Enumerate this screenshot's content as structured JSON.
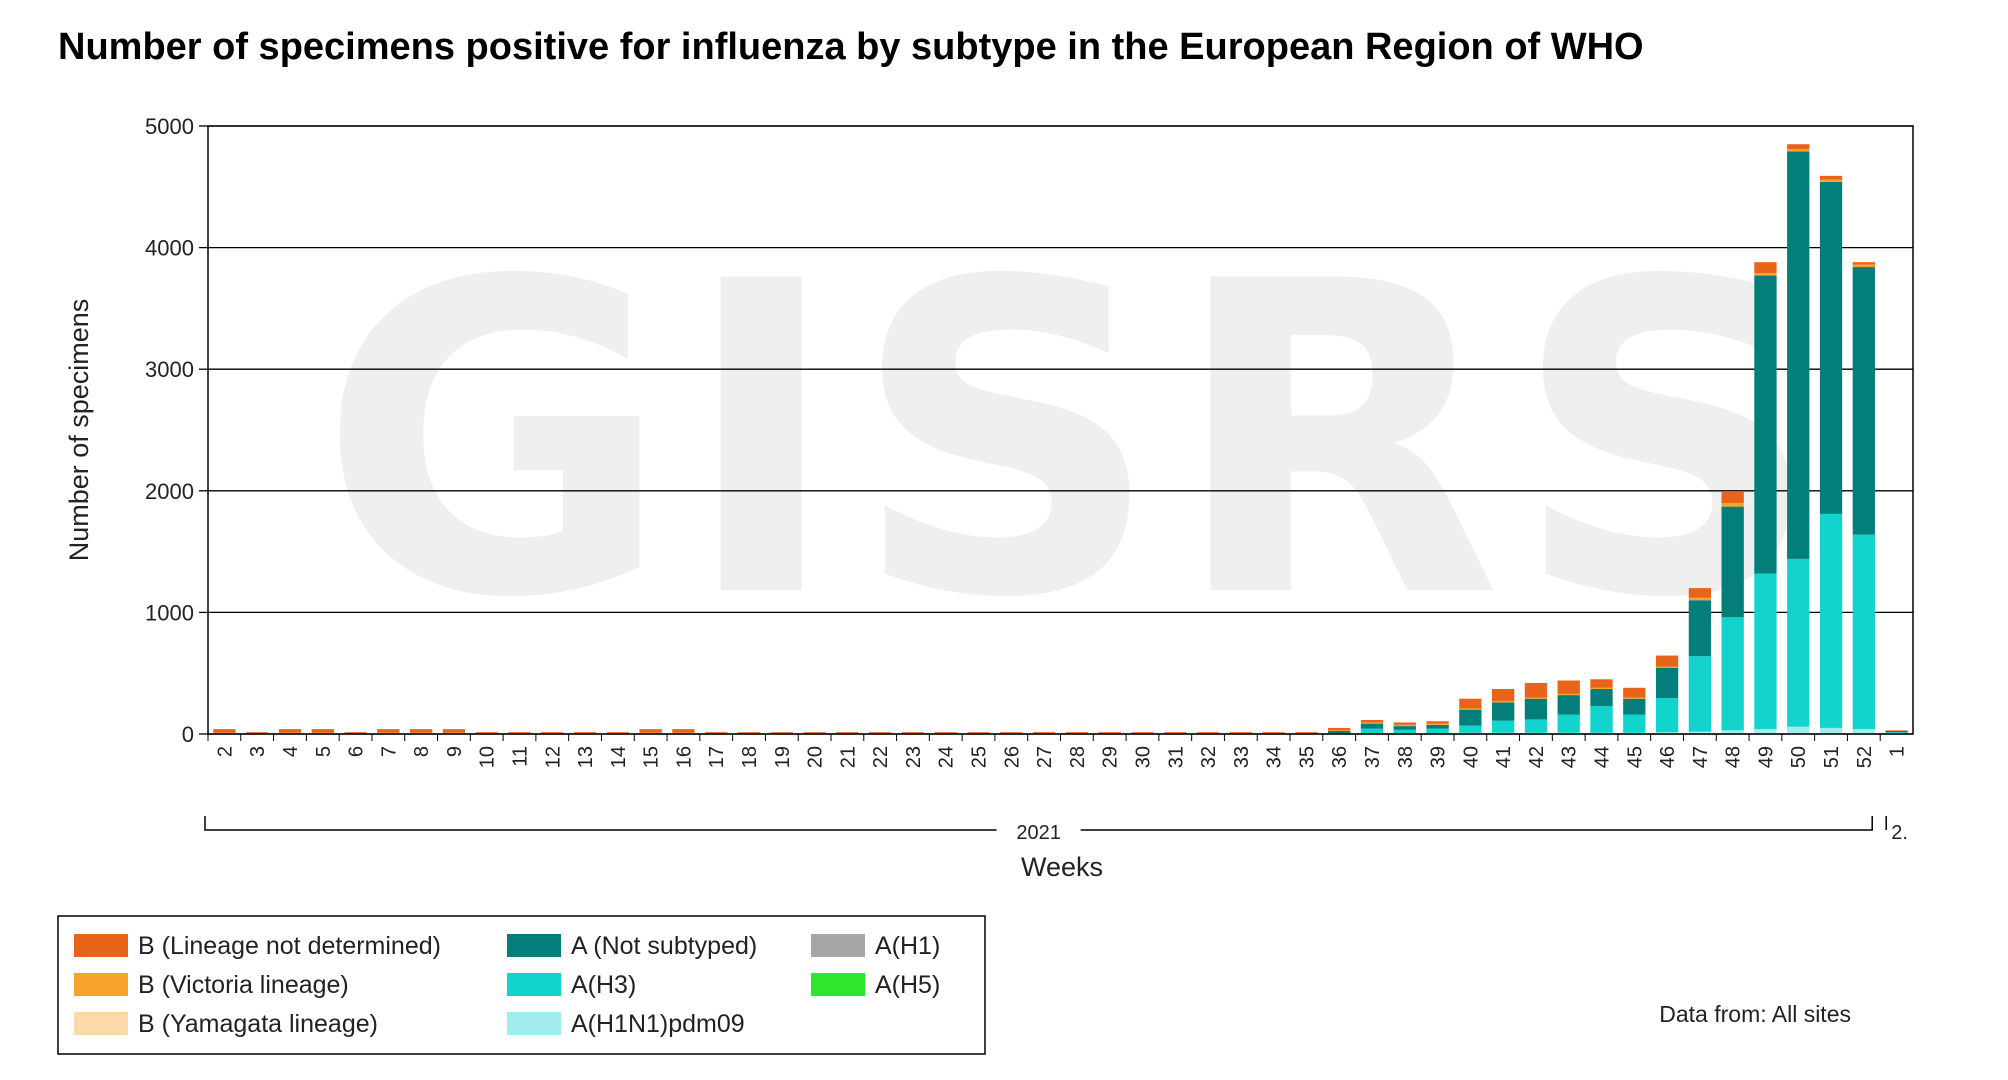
{
  "title": "Number of specimens positive for influenza by subtype in the European Region of WHO",
  "watermark": "GISRS",
  "source_note": "Data from: All sites",
  "colors": {
    "B (Lineage not determined)": "#e8641b",
    "B (Victoria lineage)": "#f7a32c",
    "B (Yamagata lineage)": "#fdd9a8",
    "A (Not subtyped)": "#047e7a",
    "A(H3)": "#12d4cc",
    "A(H1N1)pdm09": "#a1ecec",
    "A(H1)": "#a6a6a6",
    "A(H5)": "#2ee62e"
  },
  "chart_data": {
    "type": "bar",
    "stacked": true,
    "title": "Number of specimens positive for influenza by subtype in the European Region of WHO",
    "xlabel": "Weeks",
    "ylabel": "Number of specimens",
    "ylim": [
      0,
      5000
    ],
    "yticks": [
      0,
      1000,
      2000,
      3000,
      4000,
      5000
    ],
    "grid": "horizontal",
    "legend_position": "bottom-left",
    "year_groups": [
      {
        "label": "2021",
        "first_category_index": 0,
        "last_category_index": 50
      },
      {
        "label": "2.",
        "first_category_index": 51,
        "last_category_index": 51
      }
    ],
    "categories": [
      "2",
      "3",
      "4",
      "5",
      "6",
      "7",
      "8",
      "9",
      "10",
      "11",
      "12",
      "13",
      "14",
      "15",
      "16",
      "17",
      "18",
      "19",
      "20",
      "21",
      "22",
      "23",
      "24",
      "25",
      "26",
      "27",
      "28",
      "29",
      "30",
      "31",
      "32",
      "33",
      "34",
      "35",
      "36",
      "37",
      "38",
      "39",
      "40",
      "41",
      "42",
      "43",
      "44",
      "45",
      "46",
      "47",
      "48",
      "49",
      "50",
      "51",
      "52",
      "1"
    ],
    "series": [
      {
        "name": "A(H1N1)pdm09",
        "values": [
          0,
          0,
          0,
          0,
          0,
          0,
          0,
          0,
          0,
          0,
          0,
          0,
          0,
          0,
          0,
          0,
          0,
          0,
          0,
          0,
          0,
          0,
          0,
          0,
          0,
          0,
          0,
          0,
          0,
          0,
          0,
          0,
          0,
          0,
          0,
          5,
          5,
          5,
          10,
          10,
          10,
          10,
          10,
          10,
          15,
          20,
          30,
          40,
          60,
          50,
          40,
          5
        ]
      },
      {
        "name": "A(H3)",
        "values": [
          0,
          0,
          0,
          0,
          0,
          0,
          0,
          0,
          0,
          0,
          0,
          0,
          0,
          0,
          0,
          0,
          0,
          0,
          0,
          0,
          0,
          0,
          0,
          0,
          0,
          0,
          0,
          0,
          0,
          0,
          0,
          0,
          0,
          0,
          5,
          40,
          30,
          40,
          60,
          100,
          110,
          150,
          220,
          150,
          280,
          620,
          930,
          1280,
          1380,
          1760,
          1600,
          10
        ]
      },
      {
        "name": "A (Not subtyped)",
        "values": [
          0,
          0,
          0,
          0,
          0,
          0,
          0,
          0,
          0,
          0,
          0,
          0,
          0,
          0,
          0,
          0,
          0,
          0,
          0,
          0,
          0,
          0,
          0,
          0,
          0,
          0,
          0,
          0,
          0,
          0,
          0,
          0,
          0,
          0,
          20,
          40,
          30,
          30,
          130,
          150,
          170,
          160,
          140,
          130,
          250,
          460,
          910,
          2450,
          3350,
          2730,
          2200,
          10
        ]
      },
      {
        "name": "A(H1)",
        "values": [
          0,
          0,
          0,
          0,
          0,
          0,
          0,
          0,
          0,
          0,
          0,
          0,
          0,
          0,
          0,
          0,
          0,
          0,
          0,
          0,
          0,
          0,
          0,
          0,
          0,
          0,
          0,
          0,
          0,
          0,
          0,
          0,
          0,
          0,
          0,
          0,
          0,
          0,
          0,
          0,
          0,
          0,
          0,
          0,
          0,
          0,
          0,
          0,
          0,
          0,
          0,
          0
        ]
      },
      {
        "name": "A(H5)",
        "values": [
          0,
          0,
          0,
          0,
          0,
          0,
          0,
          0,
          0,
          0,
          0,
          0,
          0,
          0,
          0,
          0,
          0,
          0,
          0,
          0,
          0,
          0,
          0,
          0,
          0,
          0,
          0,
          0,
          0,
          0,
          0,
          0,
          0,
          0,
          0,
          0,
          0,
          0,
          0,
          0,
          0,
          0,
          0,
          0,
          0,
          0,
          0,
          0,
          0,
          0,
          0,
          0
        ]
      },
      {
        "name": "B (Yamagata lineage)",
        "values": [
          0,
          0,
          0,
          0,
          0,
          0,
          0,
          0,
          0,
          0,
          0,
          0,
          0,
          0,
          0,
          0,
          0,
          0,
          0,
          0,
          0,
          0,
          0,
          0,
          0,
          0,
          0,
          0,
          0,
          0,
          0,
          0,
          0,
          0,
          0,
          0,
          0,
          0,
          0,
          0,
          0,
          0,
          0,
          0,
          0,
          0,
          0,
          0,
          0,
          0,
          0,
          0
        ]
      },
      {
        "name": "B (Victoria lineage)",
        "values": [
          10,
          5,
          10,
          10,
          5,
          10,
          10,
          10,
          5,
          5,
          5,
          5,
          5,
          10,
          10,
          5,
          5,
          5,
          5,
          5,
          5,
          5,
          5,
          5,
          5,
          5,
          5,
          5,
          5,
          5,
          5,
          5,
          5,
          5,
          5,
          10,
          10,
          10,
          10,
          10,
          10,
          10,
          10,
          10,
          10,
          20,
          30,
          20,
          20,
          20,
          20,
          0
        ]
      },
      {
        "name": "B (Lineage not determined)",
        "values": [
          30,
          10,
          30,
          30,
          10,
          30,
          30,
          30,
          10,
          10,
          10,
          10,
          10,
          30,
          30,
          10,
          10,
          10,
          10,
          10,
          10,
          10,
          10,
          10,
          10,
          10,
          10,
          10,
          10,
          10,
          10,
          10,
          10,
          10,
          20,
          20,
          20,
          20,
          80,
          100,
          120,
          110,
          70,
          80,
          90,
          80,
          90,
          90,
          40,
          30,
          20,
          5
        ]
      }
    ]
  },
  "legend": {
    "columns": [
      [
        "B (Lineage not determined)",
        "B (Victoria lineage)",
        "B (Yamagata lineage)"
      ],
      [
        "A (Not subtyped)",
        "A(H3)",
        "A(H1N1)pdm09"
      ],
      [
        "A(H1)",
        "A(H5)"
      ]
    ]
  }
}
